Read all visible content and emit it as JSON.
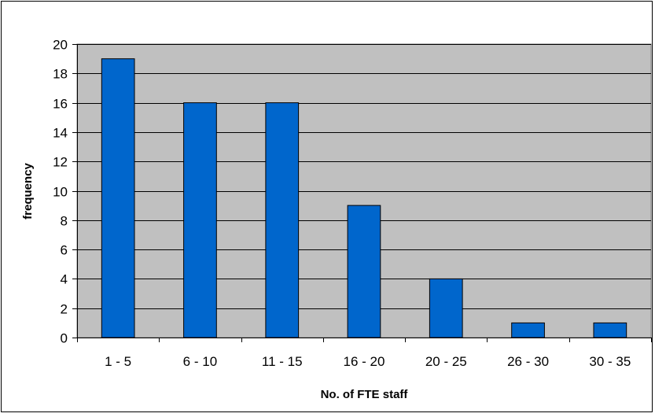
{
  "chart_data": {
    "type": "bar",
    "categories": [
      "1 - 5",
      "6 - 10",
      "11 - 15",
      "16 - 20",
      "20 - 25",
      "26 - 30",
      "30 - 35"
    ],
    "values": [
      19,
      16,
      16,
      9,
      4,
      1,
      1
    ],
    "xlabel": "No. of FTE staff",
    "ylabel": "frequency",
    "ylim": [
      0,
      20
    ],
    "yticks": [
      "0",
      "2",
      "4",
      "6",
      "8",
      "10",
      "12",
      "14",
      "16",
      "18",
      "20"
    ],
    "grid": true,
    "colors": {
      "bar": "#0066CC",
      "plot_background": "#C0C0C0",
      "gridline": "#000000"
    }
  }
}
